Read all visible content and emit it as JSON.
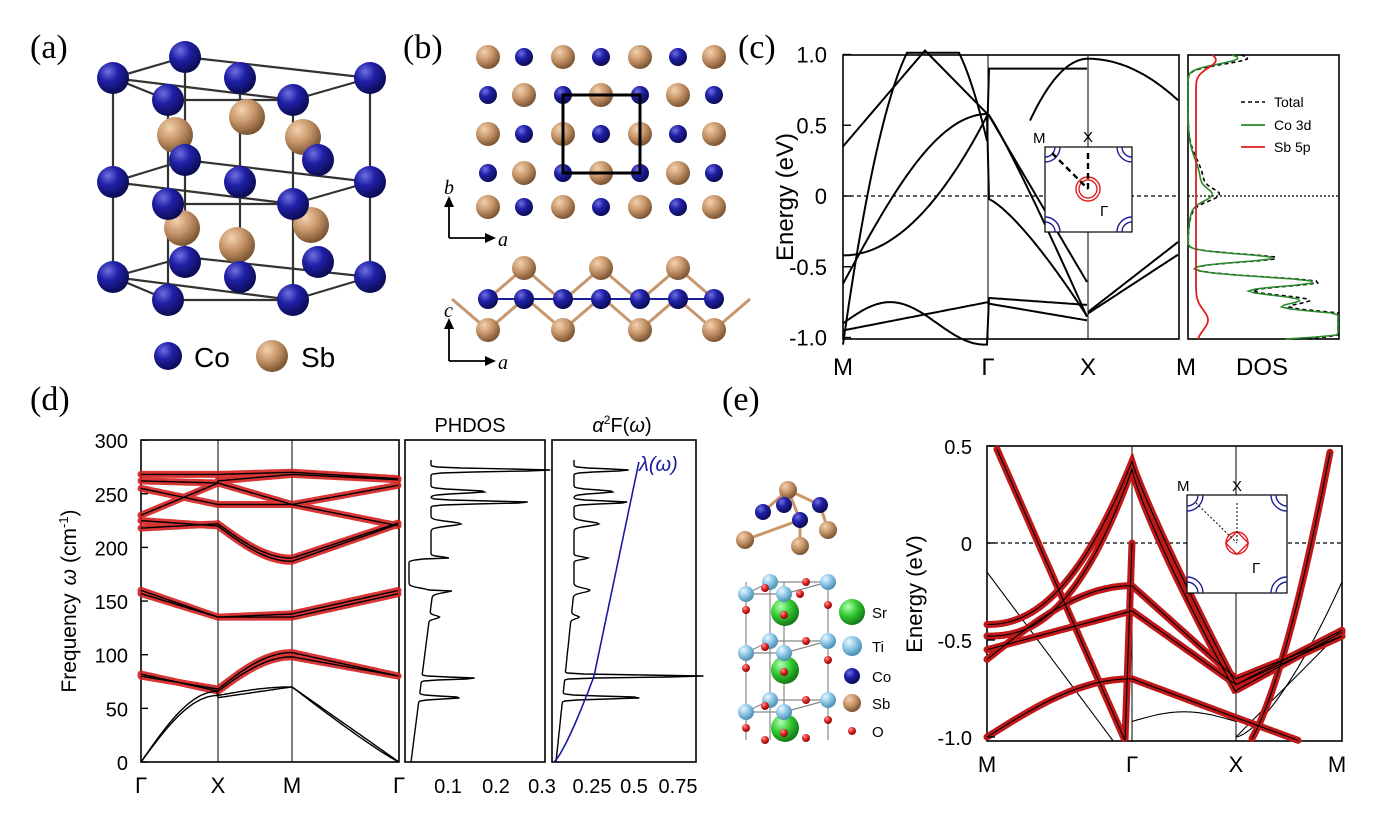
{
  "panel_labels": {
    "a": "(a)",
    "b": "(b)",
    "c": "(c)",
    "d": "(d)",
    "e": "(e)"
  },
  "panel_a": {
    "legend": [
      {
        "label": "Co",
        "color": "#1e1e96"
      },
      {
        "label": "Sb",
        "color": "#c8966a"
      }
    ]
  },
  "panel_b": {
    "axis_top_vertical": "b",
    "axis_top_horizontal": "a",
    "axis_bottom_vertical": "c",
    "axis_bottom_horizontal": "a"
  },
  "panel_c": {
    "ylabel": "Energy (eV)",
    "yticks": [
      "1.0",
      "0.5",
      "0",
      "-0.5",
      "-1.0"
    ],
    "xticks": [
      "M",
      "Γ",
      "X",
      "M"
    ],
    "dos_label": "DOS",
    "legend": [
      {
        "label": "Total",
        "color": "#000000",
        "style": "dashed"
      },
      {
        "label": "Co 3d",
        "color": "#2a8a2a",
        "style": "solid"
      },
      {
        "label": "Sb 5p",
        "color": "#e01e1e",
        "style": "solid"
      }
    ],
    "bz_labels": {
      "m": "M",
      "x": "X",
      "gamma": "Γ"
    }
  },
  "panel_d": {
    "ylabel_text": "Frequency",
    "ylabel_symbol": "ω",
    "ylabel_unit": "(cm",
    "ylabel_exp": "-1",
    "yticks": [
      "300",
      "250",
      "200",
      "150",
      "100",
      "50",
      "0"
    ],
    "xticks": [
      "Γ",
      "X",
      "M",
      "Γ"
    ],
    "phdos_title": "PHDOS",
    "phdos_xticks": [
      "0.1",
      "0.2",
      "0.3"
    ],
    "a2f_title_prefix": "α",
    "a2f_title_sup": "2",
    "a2f_title_rest": "F(",
    "a2f_title_omega": "ω",
    "a2f_title_end": ")",
    "a2f_xticks": [
      "0.25",
      "0.5",
      "0.75"
    ],
    "lambda_label_a": "λ(",
    "lambda_label_b": "ω",
    "lambda_label_c": ")"
  },
  "panel_e": {
    "ylabel": "Energy  (eV)",
    "yticks": [
      "0.5",
      "0",
      "-0.5",
      "-1.0"
    ],
    "xticks": [
      "M",
      "Γ",
      "X",
      "M"
    ],
    "legend": [
      {
        "label": "Sr",
        "color": "#33cc33"
      },
      {
        "label": "Ti",
        "color": "#8ec8e8"
      },
      {
        "label": "Co",
        "color": "#1e1e96"
      },
      {
        "label": "Sb",
        "color": "#c8966a"
      },
      {
        "label": "O",
        "color": "#dd2020"
      }
    ],
    "bz_labels": {
      "m": "M",
      "x": "X",
      "gamma": "Γ"
    }
  },
  "colors": {
    "band_red": "#d42020",
    "co_blue": "#1e1e96",
    "sb_tan": "#c8966a",
    "lambda_blue": "#1a1aa0",
    "dos_green": "#2a8a2a"
  }
}
